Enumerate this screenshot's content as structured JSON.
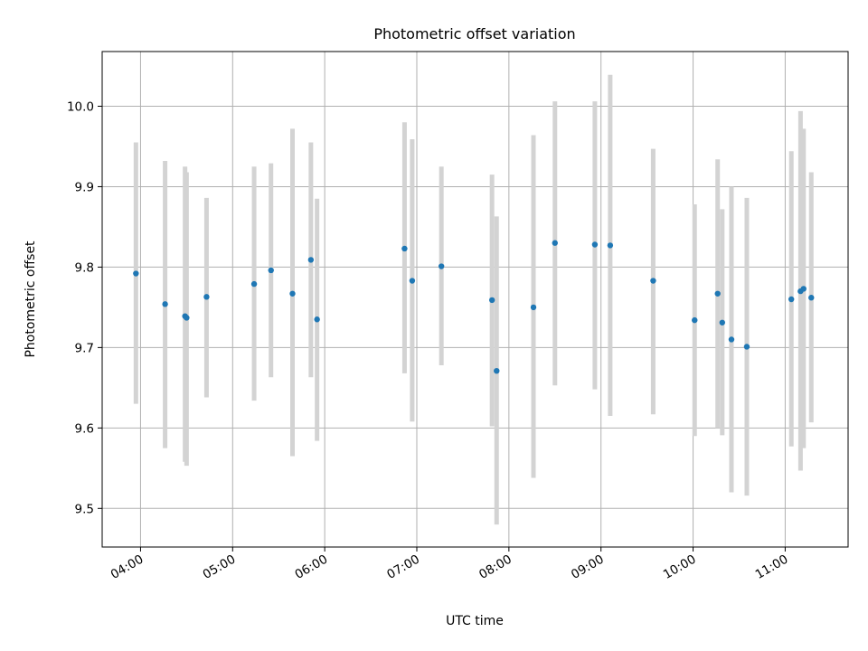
{
  "chart_data": {
    "type": "scatter",
    "title": "Photometric offset variation",
    "xlabel": "UTC time",
    "ylabel": "Photometric offset",
    "xlim": [
      "03:35",
      "11:41"
    ],
    "ylim": [
      9.452,
      10.068
    ],
    "grid": true,
    "x_ticks": [
      "04:00",
      "05:00",
      "06:00",
      "07:00",
      "08:00",
      "09:00",
      "10:00",
      "11:00"
    ],
    "y_ticks": [
      "9.5",
      "9.6",
      "9.7",
      "9.8",
      "9.9",
      "10.0"
    ],
    "point_color": "#1f77b4",
    "errorbar_color": "#d3d3d3",
    "points": [
      {
        "t": "03:57",
        "y": 9.792,
        "lo": 9.63,
        "hi": 9.955
      },
      {
        "t": "04:16",
        "y": 9.754,
        "lo": 9.575,
        "hi": 9.932
      },
      {
        "t": "04:29",
        "y": 9.739,
        "lo": 9.558,
        "hi": 9.925
      },
      {
        "t": "04:30",
        "y": 9.737,
        "lo": 9.553,
        "hi": 9.918
      },
      {
        "t": "04:43",
        "y": 9.763,
        "lo": 9.638,
        "hi": 9.886
      },
      {
        "t": "05:14",
        "y": 9.779,
        "lo": 9.634,
        "hi": 9.925
      },
      {
        "t": "05:25",
        "y": 9.796,
        "lo": 9.663,
        "hi": 9.929
      },
      {
        "t": "05:39",
        "y": 9.767,
        "lo": 9.565,
        "hi": 9.972
      },
      {
        "t": "05:51",
        "y": 9.809,
        "lo": 9.663,
        "hi": 9.955
      },
      {
        "t": "05:55",
        "y": 9.735,
        "lo": 9.584,
        "hi": 9.885
      },
      {
        "t": "06:52",
        "y": 9.823,
        "lo": 9.668,
        "hi": 9.98
      },
      {
        "t": "06:57",
        "y": 9.783,
        "lo": 9.608,
        "hi": 9.959
      },
      {
        "t": "07:16",
        "y": 9.801,
        "lo": 9.678,
        "hi": 9.925
      },
      {
        "t": "07:49",
        "y": 9.759,
        "lo": 9.602,
        "hi": 9.915
      },
      {
        "t": "07:52",
        "y": 9.671,
        "lo": 9.48,
        "hi": 9.863
      },
      {
        "t": "08:16",
        "y": 9.75,
        "lo": 9.538,
        "hi": 9.964
      },
      {
        "t": "08:30",
        "y": 9.83,
        "lo": 9.653,
        "hi": 10.006
      },
      {
        "t": "08:56",
        "y": 9.828,
        "lo": 9.648,
        "hi": 10.006
      },
      {
        "t": "09:06",
        "y": 9.827,
        "lo": 9.615,
        "hi": 10.039
      },
      {
        "t": "09:34",
        "y": 9.783,
        "lo": 9.617,
        "hi": 9.947
      },
      {
        "t": "10:01",
        "y": 9.734,
        "lo": 9.59,
        "hi": 9.878
      },
      {
        "t": "10:16",
        "y": 9.767,
        "lo": 9.6,
        "hi": 9.934
      },
      {
        "t": "10:19",
        "y": 9.731,
        "lo": 9.591,
        "hi": 9.872
      },
      {
        "t": "10:25",
        "y": 9.71,
        "lo": 9.52,
        "hi": 9.9
      },
      {
        "t": "10:35",
        "y": 9.701,
        "lo": 9.516,
        "hi": 9.886
      },
      {
        "t": "11:04",
        "y": 9.76,
        "lo": 9.577,
        "hi": 9.944
      },
      {
        "t": "11:10",
        "y": 9.77,
        "lo": 9.547,
        "hi": 9.994
      },
      {
        "t": "11:12",
        "y": 9.773,
        "lo": 9.575,
        "hi": 9.972
      },
      {
        "t": "11:17",
        "y": 9.762,
        "lo": 9.607,
        "hi": 9.918
      }
    ]
  }
}
